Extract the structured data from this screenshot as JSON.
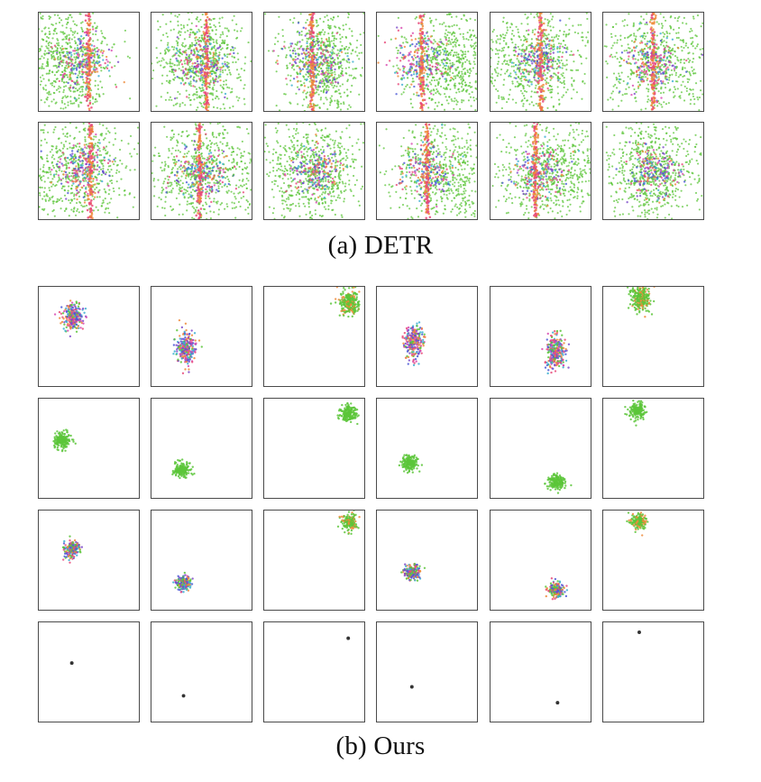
{
  "captions": {
    "detr": "(a) DETR",
    "ours": "(b) Ours"
  },
  "palette": {
    "green": "#5cc63a",
    "blue": "#4a58d6",
    "purple": "#7b48c8",
    "magenta": "#d848b0",
    "pink": "#e84a7a",
    "orange": "#ee8a3a",
    "cyan": "#3aaed0",
    "dark_point": "#333333",
    "border": "#4a4a4a"
  },
  "figure": {
    "detr": {
      "rows": 2,
      "cols": 6,
      "description_icons": "scatter-plot-panel"
    },
    "ours": {
      "rows": 4,
      "cols": 6
    }
  }
}
